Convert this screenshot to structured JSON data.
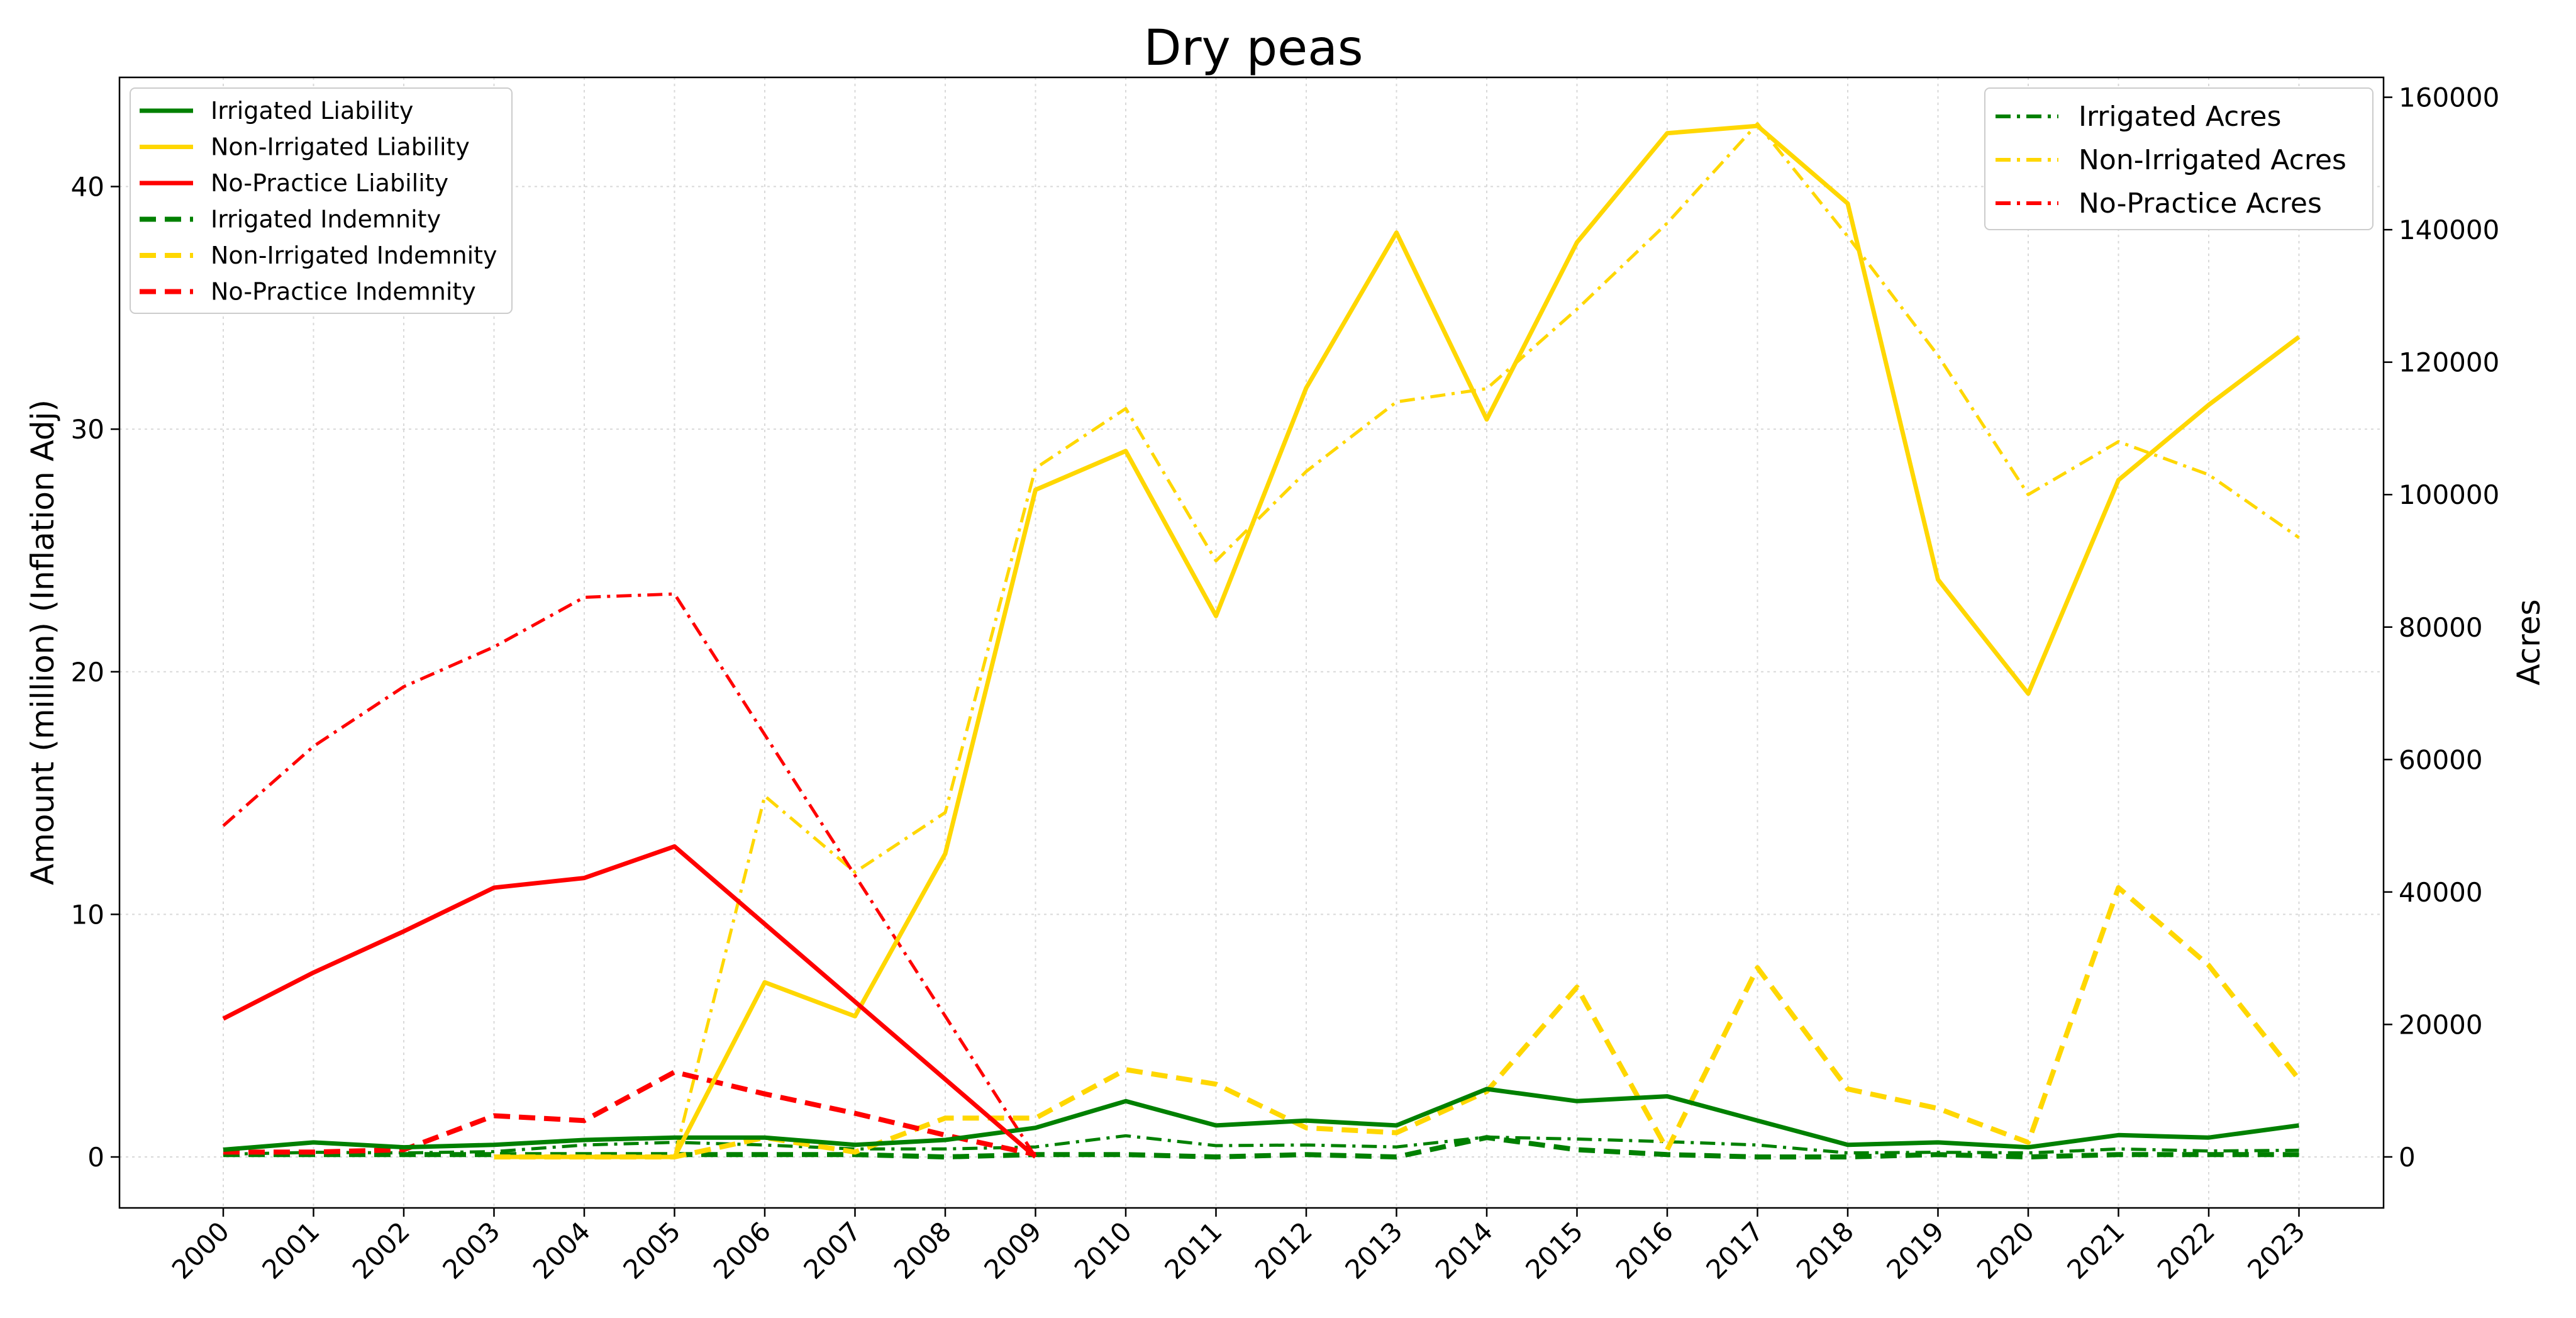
{
  "chart_data": {
    "type": "line",
    "title": "Dry peas",
    "ylabel": "Amount (million) (Inflation Adj)",
    "y2label": "Acres",
    "xlabel": "",
    "x": [
      "2000",
      "2001",
      "2002",
      "2003",
      "2004",
      "2005",
      "2006",
      "2007",
      "2008",
      "2009",
      "2010",
      "2011",
      "2012",
      "2013",
      "2014",
      "2015",
      "2016",
      "2017",
      "2018",
      "2019",
      "2020",
      "2021",
      "2022",
      "2023"
    ],
    "ylim": [
      -2.1,
      44.5
    ],
    "y2lim": [
      -7700,
      163000
    ],
    "yticks": [
      0,
      10,
      20,
      30,
      40
    ],
    "y2ticks": [
      0,
      20000,
      40000,
      60000,
      80000,
      100000,
      120000,
      140000,
      160000
    ],
    "grid": true,
    "legend_left_placement": "upper-left",
    "legend_right_placement": "upper-right",
    "series": [
      {
        "name": "Irrigated Liability",
        "axis": "left",
        "style": "solid",
        "color": "#008000",
        "values": [
          0.3,
          0.6,
          0.4,
          0.5,
          0.7,
          0.8,
          0.8,
          0.5,
          0.7,
          1.2,
          2.3,
          1.3,
          1.5,
          1.3,
          2.8,
          2.3,
          2.5,
          1.5,
          0.5,
          0.6,
          0.4,
          0.9,
          0.8,
          1.3
        ]
      },
      {
        "name": "Non-Irrigated Liability",
        "axis": "left",
        "style": "solid",
        "color": "#FFD700",
        "values": [
          null,
          null,
          null,
          0.0,
          0.0,
          0.0,
          7.2,
          5.8,
          12.5,
          27.5,
          29.1,
          22.3,
          31.7,
          38.1,
          30.4,
          37.7,
          42.2,
          42.5,
          39.3,
          23.8,
          19.1,
          27.9,
          31.0,
          33.8
        ]
      },
      {
        "name": "No-Practice Liability",
        "axis": "left",
        "style": "solid",
        "color": "#FF0000",
        "values": [
          5.7,
          7.6,
          9.3,
          11.1,
          11.5,
          12.8,
          null,
          null,
          null,
          0.0,
          null,
          null,
          null,
          null,
          null,
          null,
          null,
          null,
          null,
          null,
          null,
          null,
          null,
          null
        ]
      },
      {
        "name": "Irrigated Indemnity",
        "axis": "left",
        "style": "dashed",
        "color": "#008000",
        "values": [
          0.1,
          0.1,
          0.1,
          0.1,
          0.1,
          0.1,
          0.1,
          0.1,
          0.0,
          0.1,
          0.1,
          0.0,
          0.1,
          0.0,
          0.8,
          0.3,
          0.1,
          0.0,
          0.0,
          0.1,
          0.0,
          0.1,
          0.1,
          0.1
        ]
      },
      {
        "name": "Non-Irrigated Indemnity",
        "axis": "left",
        "style": "dashed",
        "color": "#FFD700",
        "values": [
          null,
          null,
          null,
          0.0,
          0.0,
          0.0,
          0.8,
          0.2,
          1.6,
          1.6,
          3.6,
          3.0,
          1.2,
          1.0,
          2.7,
          7.0,
          0.3,
          7.8,
          2.8,
          2.0,
          0.6,
          11.1,
          7.9,
          3.2
        ]
      },
      {
        "name": "No-Practice Indemnity",
        "axis": "left",
        "style": "dashed",
        "color": "#FF0000",
        "values": [
          0.2,
          0.2,
          0.3,
          1.7,
          1.5,
          3.5,
          2.6,
          1.8,
          0.9,
          0.1,
          null,
          null,
          null,
          null,
          null,
          null,
          null,
          null,
          null,
          null,
          null,
          null,
          null,
          null
        ]
      },
      {
        "name": "Irrigated Acres",
        "axis": "right",
        "style": "dashdot",
        "color": "#008000",
        "values": [
          400,
          700,
          600,
          800,
          1800,
          2200,
          1800,
          1200,
          1200,
          1500,
          3200,
          1700,
          1800,
          1500,
          3000,
          2700,
          2300,
          1800,
          600,
          700,
          600,
          1200,
          900,
          1000
        ]
      },
      {
        "name": "Non-Irrigated Acres",
        "axis": "right",
        "style": "dashdot",
        "color": "#FFD700",
        "values": [
          null,
          null,
          null,
          0,
          0,
          0,
          54500,
          43000,
          52000,
          104000,
          113000,
          90000,
          103500,
          114000,
          116000,
          128000,
          141000,
          156000,
          139000,
          121000,
          100000,
          108000,
          103000,
          93500
        ]
      },
      {
        "name": "No-Practice Acres",
        "axis": "right",
        "style": "dashdot",
        "color": "#FF0000",
        "values": [
          50000,
          62000,
          71000,
          77000,
          84500,
          85000,
          null,
          null,
          null,
          0,
          null,
          null,
          null,
          null,
          null,
          null,
          null,
          null,
          null,
          null,
          null,
          null,
          null,
          null
        ]
      }
    ]
  }
}
